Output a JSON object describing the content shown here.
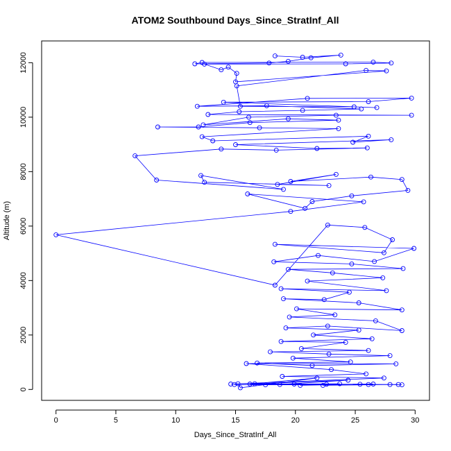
{
  "chart_data": {
    "type": "line",
    "title": "ATOM2 Southbound Days_Since_StratInf_All",
    "xlabel": "Days_Since_StratInf_All",
    "ylabel": "Altitude (m)",
    "xlim": [
      -1.2,
      31.2
    ],
    "ylim": [
      -400,
      12800
    ],
    "xticks": [
      0,
      5,
      10,
      15,
      20,
      25,
      30
    ],
    "yticks": [
      0,
      2000,
      4000,
      6000,
      8000,
      10000,
      12000
    ],
    "grid": false,
    "marker": "open-circle",
    "colors": {
      "series": "#0000ff",
      "axes": "#000000"
    },
    "series": [
      {
        "points": [
          [
            18.3,
            12250
          ],
          [
            20.6,
            12200
          ],
          [
            23.8,
            12280
          ],
          [
            21.3,
            12180
          ],
          [
            19.4,
            12050
          ],
          [
            17.8,
            11990
          ],
          [
            11.6,
            11960
          ],
          [
            12.2,
            12010
          ],
          [
            26.5,
            12020
          ],
          [
            28.0,
            11990
          ],
          [
            24.2,
            11960
          ],
          [
            12.4,
            11950
          ],
          [
            13.8,
            11740
          ],
          [
            14.4,
            11840
          ],
          [
            15.1,
            11610
          ],
          [
            15.0,
            11300
          ],
          [
            27.6,
            11700
          ],
          [
            25.9,
            11720
          ],
          [
            15.1,
            11150
          ],
          [
            15.4,
            10400
          ],
          [
            24.9,
            10380
          ],
          [
            26.8,
            10350
          ],
          [
            14.0,
            10550
          ],
          [
            26.1,
            10570
          ],
          [
            29.7,
            10700
          ],
          [
            21.0,
            10690
          ],
          [
            11.8,
            10400
          ],
          [
            17.6,
            10420
          ],
          [
            25.5,
            10300
          ],
          [
            20.6,
            10250
          ],
          [
            15.3,
            10200
          ],
          [
            12.7,
            10100
          ],
          [
            29.7,
            10070
          ],
          [
            23.4,
            10070
          ],
          [
            16.1,
            10000
          ],
          [
            12.3,
            9720
          ],
          [
            19.4,
            9940
          ],
          [
            23.6,
            9890
          ],
          [
            16.2,
            9800
          ],
          [
            11.9,
            9640
          ],
          [
            8.5,
            9640
          ],
          [
            17.0,
            9610
          ],
          [
            23.6,
            9580
          ],
          [
            12.2,
            9280
          ],
          [
            13.1,
            9130
          ],
          [
            26.1,
            9300
          ],
          [
            24.8,
            9080
          ],
          [
            28.0,
            9170
          ],
          [
            15.0,
            8990
          ],
          [
            21.8,
            8850
          ],
          [
            26.0,
            8870
          ],
          [
            18.4,
            8790
          ],
          [
            13.8,
            8830
          ],
          [
            6.6,
            8580
          ],
          [
            8.4,
            7690
          ],
          [
            19.0,
            7350
          ],
          [
            12.1,
            7860
          ],
          [
            12.4,
            7610
          ],
          [
            22.8,
            7490
          ],
          [
            18.5,
            7530
          ],
          [
            23.4,
            7900
          ],
          [
            19.6,
            7640
          ],
          [
            26.3,
            7800
          ],
          [
            28.9,
            7710
          ],
          [
            29.4,
            7310
          ],
          [
            24.7,
            7110
          ],
          [
            21.4,
            6900
          ],
          [
            20.8,
            6650
          ],
          [
            16.0,
            7180
          ],
          [
            25.7,
            6890
          ],
          [
            19.6,
            6540
          ],
          [
            0.0,
            5680
          ],
          [
            18.3,
            3830
          ],
          [
            22.7,
            6040
          ],
          [
            25.8,
            5950
          ],
          [
            28.1,
            5500
          ],
          [
            27.4,
            5020
          ],
          [
            18.3,
            5330
          ],
          [
            29.9,
            5180
          ],
          [
            26.6,
            4700
          ],
          [
            21.9,
            4920
          ],
          [
            18.2,
            4690
          ],
          [
            24.7,
            4610
          ],
          [
            29.0,
            4440
          ],
          [
            19.4,
            4410
          ],
          [
            23.1,
            4280
          ],
          [
            27.3,
            4100
          ],
          [
            21.0,
            3980
          ],
          [
            27.6,
            3630
          ],
          [
            18.8,
            3700
          ],
          [
            24.5,
            3570
          ],
          [
            22.4,
            3300
          ],
          [
            19.0,
            3330
          ],
          [
            25.3,
            3180
          ],
          [
            28.9,
            2920
          ],
          [
            20.1,
            2960
          ],
          [
            23.3,
            2740
          ],
          [
            19.5,
            2660
          ],
          [
            26.7,
            2520
          ],
          [
            28.9,
            2160
          ],
          [
            22.7,
            2330
          ],
          [
            19.2,
            2260
          ],
          [
            25.3,
            2180
          ],
          [
            21.5,
            2000
          ],
          [
            26.4,
            1860
          ],
          [
            18.8,
            1760
          ],
          [
            24.2,
            1730
          ],
          [
            20.5,
            1500
          ],
          [
            26.1,
            1430
          ],
          [
            17.9,
            1380
          ],
          [
            22.8,
            1300
          ],
          [
            27.9,
            1240
          ],
          [
            19.8,
            1150
          ],
          [
            24.6,
            1010
          ],
          [
            16.8,
            970
          ],
          [
            21.4,
            880
          ],
          [
            28.4,
            940
          ],
          [
            15.9,
            950
          ],
          [
            23.0,
            730
          ],
          [
            25.9,
            570
          ],
          [
            18.9,
            480
          ],
          [
            27.4,
            420
          ],
          [
            14.6,
            200
          ],
          [
            15.2,
            210
          ],
          [
            15.4,
            60
          ],
          [
            21.8,
            420
          ],
          [
            16.2,
            200
          ],
          [
            24.4,
            340
          ],
          [
            18.7,
            180
          ],
          [
            26.5,
            200
          ],
          [
            20.4,
            150
          ],
          [
            22.6,
            190
          ],
          [
            28.6,
            180
          ],
          [
            17.5,
            170
          ],
          [
            14.9,
            180
          ],
          [
            23.7,
            210
          ],
          [
            19.9,
            200
          ],
          [
            26.1,
            180
          ],
          [
            16.6,
            210
          ],
          [
            25.4,
            190
          ],
          [
            22.3,
            150
          ],
          [
            27.9,
            180
          ],
          [
            28.9,
            170
          ]
        ]
      }
    ]
  }
}
